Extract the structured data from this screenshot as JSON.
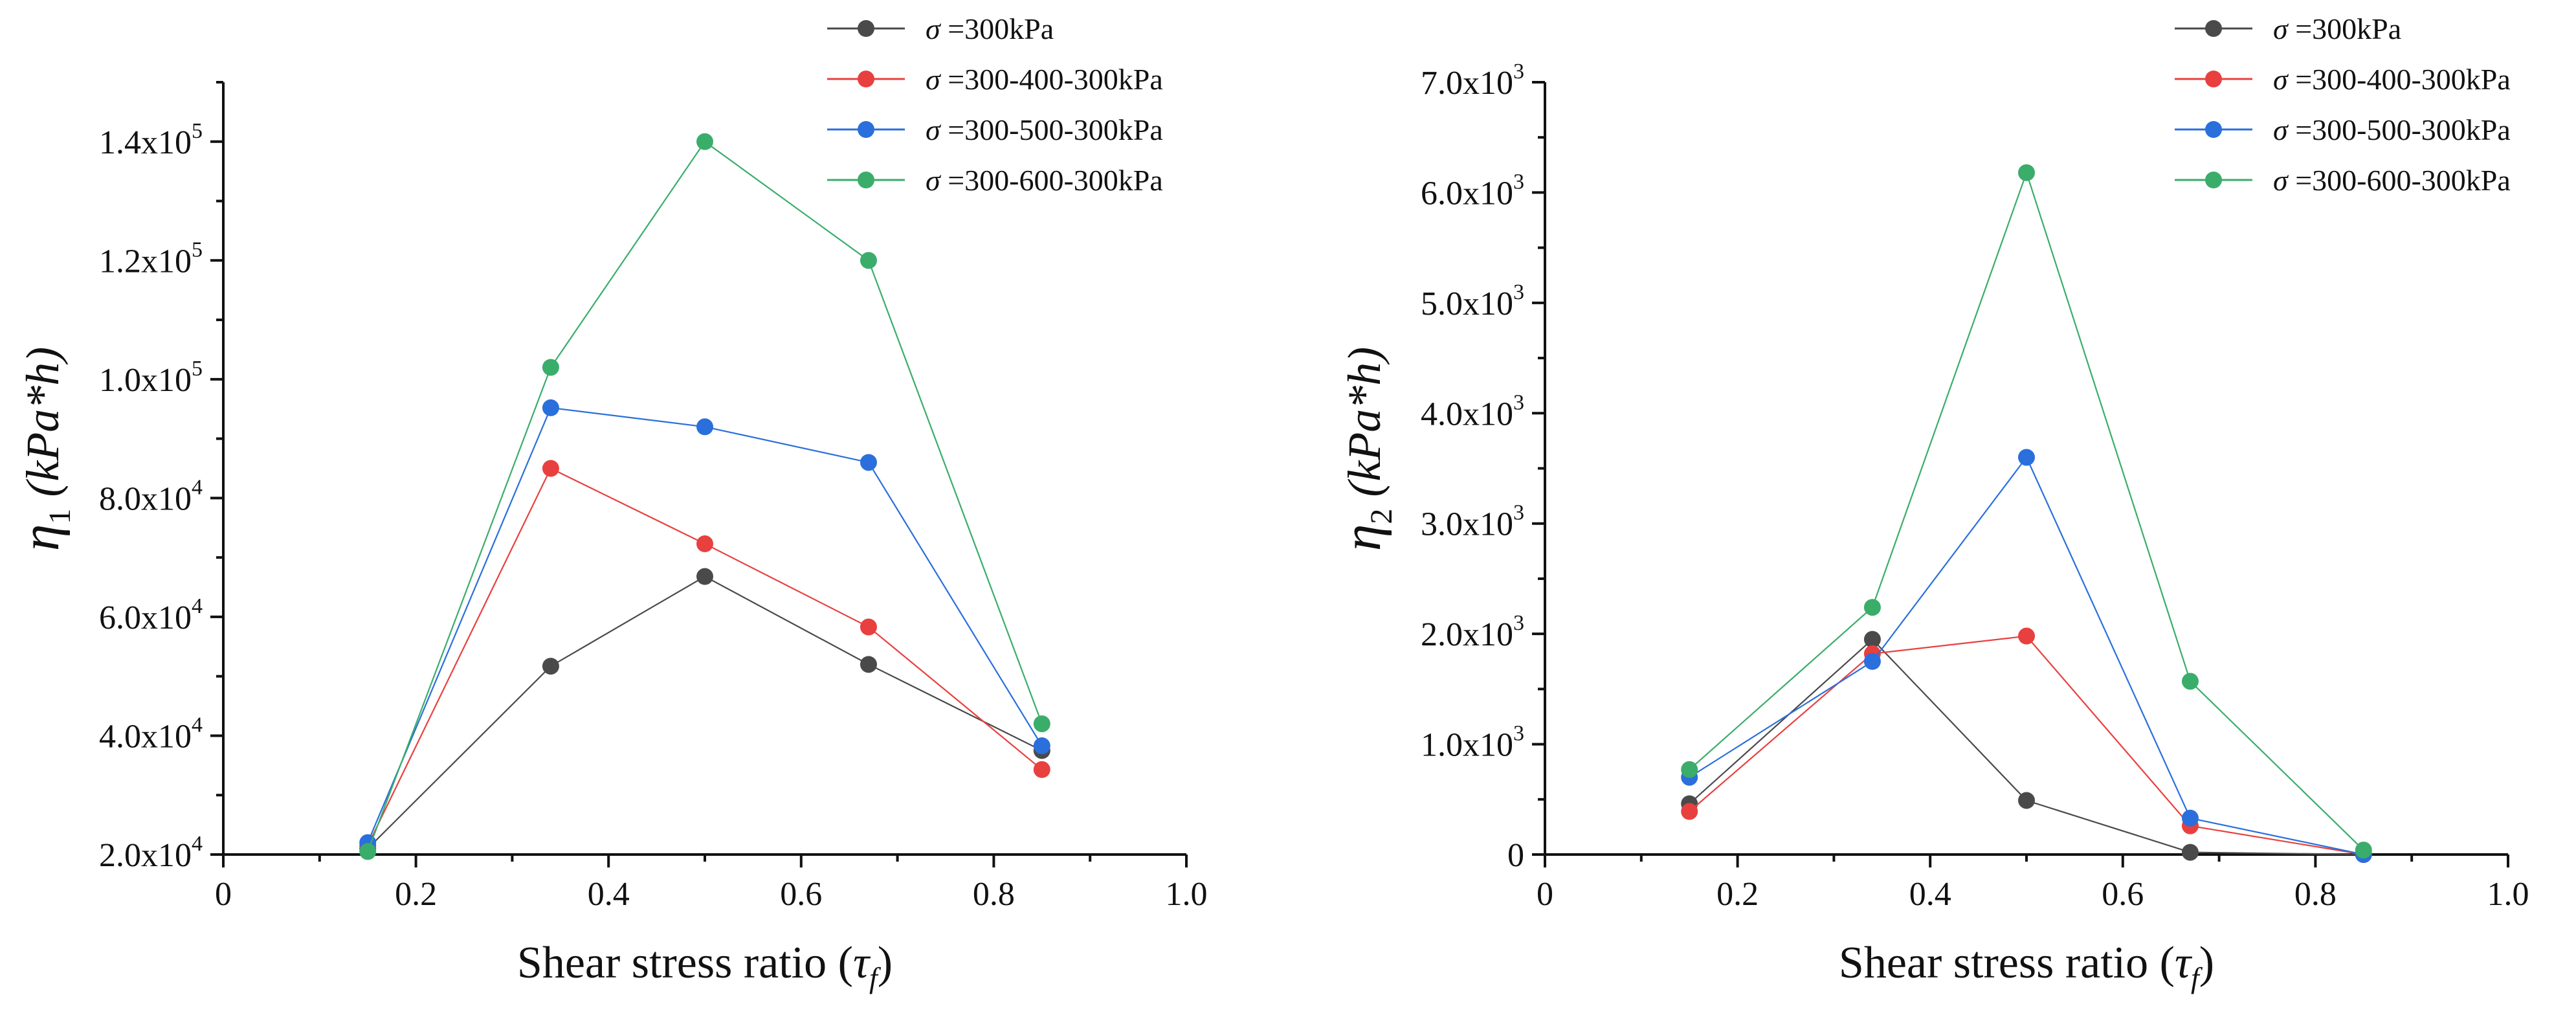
{
  "chart_data": [
    {
      "type": "line",
      "title": "",
      "xlabel_text": "Shear stress ratio (",
      "xlabel_symbol": "τ",
      "xlabel_sub": "f",
      "xlabel_close": ")",
      "ylabel_symbol": "η",
      "ylabel_sub": "1",
      "ylabel_unit": "(kPa*h)",
      "xlim": [
        0,
        1.0
      ],
      "ylim": [
        20000,
        150000
      ],
      "x_ticks": [
        {
          "value": 0,
          "label": "0"
        },
        {
          "value": 0.2,
          "label": "0.2"
        },
        {
          "value": 0.4,
          "label": "0.4"
        },
        {
          "value": 0.6,
          "label": "0.6"
        },
        {
          "value": 0.8,
          "label": "0.8"
        },
        {
          "value": 1.0,
          "label": "1.0"
        }
      ],
      "y_ticks": [
        {
          "value": 20000,
          "mant": "2.0x10",
          "exp": "4"
        },
        {
          "value": 40000,
          "mant": "4.0x10",
          "exp": "4"
        },
        {
          "value": 60000,
          "mant": "6.0x10",
          "exp": "4"
        },
        {
          "value": 80000,
          "mant": "8.0x10",
          "exp": "4"
        },
        {
          "value": 100000,
          "mant": "1.0x10",
          "exp": "5"
        },
        {
          "value": 120000,
          "mant": "1.2x10",
          "exp": "5"
        },
        {
          "value": 140000,
          "mant": "1.4x10",
          "exp": "5"
        }
      ],
      "legend_position": "top-right",
      "x": [
        0.15,
        0.34,
        0.5,
        0.67,
        0.85
      ],
      "series": [
        {
          "name": "σ =300kPa",
          "sym": "σ",
          "rest": " =300kPa",
          "color": "#4a4a4a",
          "values": [
            21000,
            51700,
            66800,
            52000,
            37500
          ]
        },
        {
          "name": "σ =300-400-300kPa",
          "sym": "σ",
          "rest": " =300-400-300kPa",
          "color": "#e8403f",
          "values": [
            21500,
            85000,
            72300,
            58300,
            34300
          ]
        },
        {
          "name": "σ =300-500-300kPa",
          "sym": "σ",
          "rest": " =300-500-300kPa",
          "color": "#2a6fdc",
          "values": [
            22000,
            95200,
            92000,
            86000,
            38300
          ]
        },
        {
          "name": "σ =300-600-300kPa",
          "sym": "σ",
          "rest": " =300-600-300kPa",
          "color": "#3aad6a",
          "values": [
            20500,
            102000,
            140000,
            120000,
            42000
          ]
        }
      ]
    },
    {
      "type": "line",
      "title": "",
      "xlabel_text": "Shear stress ratio (",
      "xlabel_symbol": "τ",
      "xlabel_sub": "f",
      "xlabel_close": ")",
      "ylabel_symbol": "η",
      "ylabel_sub": "2",
      "ylabel_unit": "(kPa*h)",
      "xlim": [
        0,
        1.0
      ],
      "ylim": [
        0,
        7000
      ],
      "x_ticks": [
        {
          "value": 0,
          "label": "0"
        },
        {
          "value": 0.2,
          "label": "0.2"
        },
        {
          "value": 0.4,
          "label": "0.4"
        },
        {
          "value": 0.6,
          "label": "0.6"
        },
        {
          "value": 0.8,
          "label": "0.8"
        },
        {
          "value": 1.0,
          "label": "1.0"
        }
      ],
      "y_ticks": [
        {
          "value": 0,
          "mant": "0",
          "exp": ""
        },
        {
          "value": 1000,
          "mant": "1.0x10",
          "exp": "3"
        },
        {
          "value": 2000,
          "mant": "2.0x10",
          "exp": "3"
        },
        {
          "value": 3000,
          "mant": "3.0x10",
          "exp": "3"
        },
        {
          "value": 4000,
          "mant": "4.0x10",
          "exp": "3"
        },
        {
          "value": 5000,
          "mant": "5.0x10",
          "exp": "3"
        },
        {
          "value": 6000,
          "mant": "6.0x10",
          "exp": "3"
        },
        {
          "value": 7000,
          "mant": "7.0x10",
          "exp": "3"
        }
      ],
      "legend_position": "top-right",
      "x": [
        0.15,
        0.34,
        0.5,
        0.67,
        0.85
      ],
      "series": [
        {
          "name": "σ =300kPa",
          "sym": "σ",
          "rest": " =300kPa",
          "color": "#4a4a4a",
          "values": [
            460,
            1950,
            490,
            20,
            0
          ]
        },
        {
          "name": "σ =300-400-300kPa",
          "sym": "σ",
          "rest": " =300-400-300kPa",
          "color": "#e8403f",
          "values": [
            390,
            1820,
            1980,
            260,
            0
          ]
        },
        {
          "name": "σ =300-500-300kPa",
          "sym": "σ",
          "rest": " =300-500-300kPa",
          "color": "#2a6fdc",
          "values": [
            700,
            1750,
            3600,
            330,
            0
          ]
        },
        {
          "name": "σ =300-600-300kPa",
          "sym": "σ",
          "rest": " =300-600-300kPa",
          "color": "#3aad6a",
          "values": [
            770,
            2240,
            6180,
            1570,
            40
          ]
        }
      ]
    }
  ]
}
